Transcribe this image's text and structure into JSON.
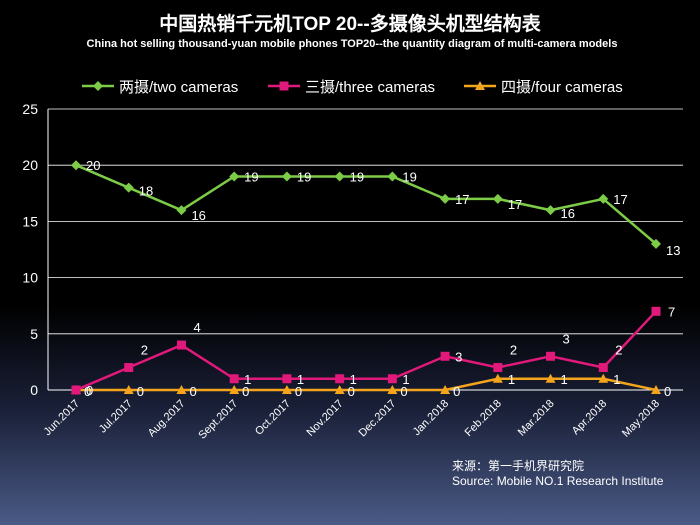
{
  "colors": {
    "background": "#000000",
    "axis": "#ffffff",
    "grid": "#ffffff",
    "series": [
      "#7ccc47",
      "#e0197a",
      "#f4a51c"
    ]
  },
  "chart_data": {
    "type": "line",
    "title": "中国热销千元机TOP 20--多摄像头机型结构表",
    "subtitle": "China hot selling thousand-yuan mobile phones TOP20--the quantity diagram of multi-camera models",
    "xlabel": "",
    "ylabel": "",
    "ylim": [
      0,
      25
    ],
    "yticks": [
      0,
      5,
      10,
      15,
      20,
      25
    ],
    "grid": true,
    "legend_position": "top",
    "categories": [
      "Jun.2017",
      "Jul.2017",
      "Aug.2017",
      "Sept.2017",
      "Oct.2017",
      "Nov.2017",
      "Dec.2017",
      "Jan.2018",
      "Feb.2018",
      "Mar.2018",
      "Apr.2018",
      "May.2018"
    ],
    "series": [
      {
        "name": "两摄/two cameras",
        "marker": "diamond",
        "color": "#7ccc47",
        "values": [
          20,
          18,
          16,
          19,
          19,
          19,
          19,
          17,
          17,
          16,
          17,
          13
        ]
      },
      {
        "name": "三摄/three cameras",
        "marker": "square",
        "color": "#e0197a",
        "values": [
          0,
          2,
          4,
          1,
          1,
          1,
          1,
          3,
          2,
          3,
          2,
          7
        ]
      },
      {
        "name": "四摄/four cameras",
        "marker": "triangle",
        "color": "#f4a51c",
        "values": [
          0,
          0,
          0,
          0,
          0,
          0,
          0,
          0,
          1,
          1,
          1,
          0
        ]
      }
    ],
    "source_lines": [
      "来源：第一手机界研究院",
      "Source: Mobile NO.1 Research Institute"
    ]
  }
}
